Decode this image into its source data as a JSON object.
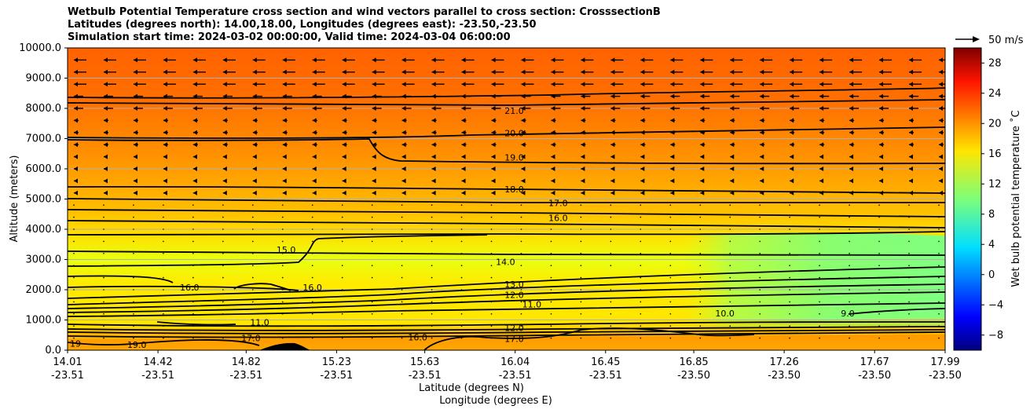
{
  "chart_data": {
    "type": "contour",
    "title_lines": [
      "Wetbulb Potential Temperature cross section and wind vectors parallel to cross section: CrosssectionB",
      "Latitudes (degrees north): 14.00,18.00, Longitudes (degrees east): -23.50,-23.50",
      "Simulation start time: 2024-03-02 00:00:00, Valid time: 2024-03-04 06:00:00"
    ],
    "xlabel_line1": "Latitude (degrees N)",
    "xlabel_line2": "Longitude (degrees E)",
    "ylabel": "Altitude (meters)",
    "ylim": [
      0,
      10000
    ],
    "y_ticks": [
      "0.0",
      "1000.0",
      "2000.0",
      "3000.0",
      "4000.0",
      "5000.0",
      "6000.0",
      "7000.0",
      "8000.0",
      "9000.0",
      "10000.0"
    ],
    "x_ticks": [
      {
        "lat": "14.01",
        "lon": "-23.51"
      },
      {
        "lat": "14.42",
        "lon": "-23.51"
      },
      {
        "lat": "14.82",
        "lon": "-23.51"
      },
      {
        "lat": "15.23",
        "lon": "-23.51"
      },
      {
        "lat": "15.63",
        "lon": "-23.51"
      },
      {
        "lat": "16.04",
        "lon": "-23.51"
      },
      {
        "lat": "16.45",
        "lon": "-23.51"
      },
      {
        "lat": "16.85",
        "lon": "-23.50"
      },
      {
        "lat": "17.26",
        "lon": "-23.50"
      },
      {
        "lat": "17.67",
        "lon": "-23.50"
      },
      {
        "lat": "17.99",
        "lon": "-23.50"
      }
    ],
    "grid": "horizontal",
    "colorbar": {
      "label": "Wet bulb potential temperature $^\\circ$C",
      "label_text": "Wet bulb potential temperature ˚C",
      "range": [
        -10,
        30
      ],
      "ticks": [
        "28",
        "24",
        "20",
        "16",
        "12",
        "8",
        "4",
        "0",
        "−4",
        "−8"
      ],
      "colormap": "jet"
    },
    "quiver_key": {
      "label": "50 m/s",
      "speed": 50
    },
    "contour_labels": [
      {
        "text": "21.0",
        "alt": 7900,
        "frac": 0.5
      },
      {
        "text": "20.0",
        "alt": 7150,
        "frac": 0.5
      },
      {
        "text": "19.0",
        "alt": 6350,
        "frac": 0.5
      },
      {
        "text": "18.0",
        "alt": 5300,
        "frac": 0.5
      },
      {
        "text": "17.0",
        "alt": 4850,
        "frac": 0.55
      },
      {
        "text": "16.0",
        "alt": 4350,
        "frac": 0.55
      },
      {
        "text": "15.0",
        "alt": 3300,
        "frac": 0.24
      },
      {
        "text": "16.0",
        "alt": 2050,
        "frac": 0.13
      },
      {
        "text": "16.0",
        "alt": 2050,
        "frac": 0.27
      },
      {
        "text": "14.0",
        "alt": 2900,
        "frac": 0.49
      },
      {
        "text": "13.0",
        "alt": 2150,
        "frac": 0.5
      },
      {
        "text": "12.0",
        "alt": 1800,
        "frac": 0.5
      },
      {
        "text": "11.0",
        "alt": 1500,
        "frac": 0.52
      },
      {
        "text": "10.0",
        "alt": 1200,
        "frac": 0.74
      },
      {
        "text": "9.0",
        "alt": 1200,
        "frac": 0.88
      },
      {
        "text": "11.0",
        "alt": 900,
        "frac": 0.21
      },
      {
        "text": "17.0",
        "alt": 380,
        "frac": 0.2
      },
      {
        "text": "16.0",
        "alt": 400,
        "frac": 0.39
      },
      {
        "text": "12.0",
        "alt": 720,
        "frac": 0.5
      },
      {
        "text": "17.0",
        "alt": 350,
        "frac": 0.5
      },
      {
        "text": "19.0",
        "alt": 150,
        "frac": 0.07
      },
      {
        "text": "19",
        "alt": 200,
        "frac": 0.0
      }
    ],
    "colors": {
      "upper": "#ff6600",
      "mid": "#ffa000",
      "yellow": "#ffe000",
      "green": "#80ff80"
    }
  }
}
